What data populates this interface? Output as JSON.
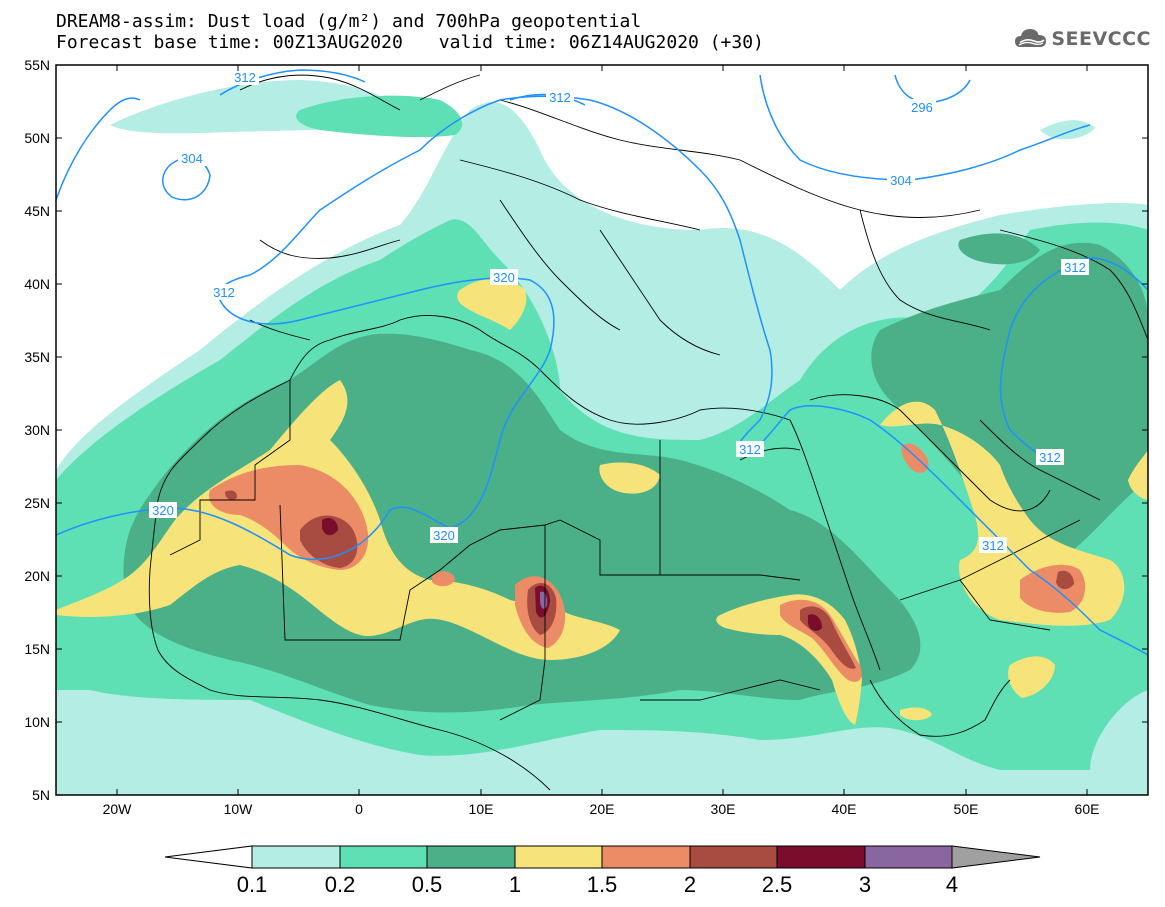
{
  "title": {
    "line1": "DREAM8-assim: Dust load (g/m²) and 700hPa geopotential",
    "base_time": "Forecast base time: 00Z13AUG2020",
    "valid_time": "valid time: 06Z14AUG2020 (+30)"
  },
  "logo": {
    "text": "SEEVCCC",
    "icon": "cloud-icon"
  },
  "map": {
    "lon_range": [
      -25,
      65
    ],
    "lat_range": [
      5,
      55
    ],
    "lat_ticks": [
      "55N",
      "50N",
      "45N",
      "40N",
      "35N",
      "30N",
      "25N",
      "20N",
      "15N",
      "10N",
      "5N"
    ],
    "lon_ticks": [
      "20W",
      "10W",
      "0",
      "10E",
      "20E",
      "30E",
      "40E",
      "50E",
      "60E"
    ]
  },
  "contour_labels": [
    "312",
    "304",
    "312",
    "296",
    "304",
    "312",
    "320",
    "312",
    "312",
    "320",
    "320",
    "312",
    "312"
  ],
  "colorbar": {
    "ticks": [
      "0.1",
      "0.2",
      "0.5",
      "1",
      "1.5",
      "2",
      "2.5",
      "3",
      "4"
    ],
    "colors": [
      "#ffffff",
      "#b3ede4",
      "#5ee0b4",
      "#4bb088",
      "#f6e37a",
      "#ec8c66",
      "#a84c42",
      "#7a0c2c",
      "#8a66a0",
      "#a0a0a0"
    ]
  },
  "colors": {
    "geopotential_contour": "#1e90ff",
    "border": "#000000"
  }
}
